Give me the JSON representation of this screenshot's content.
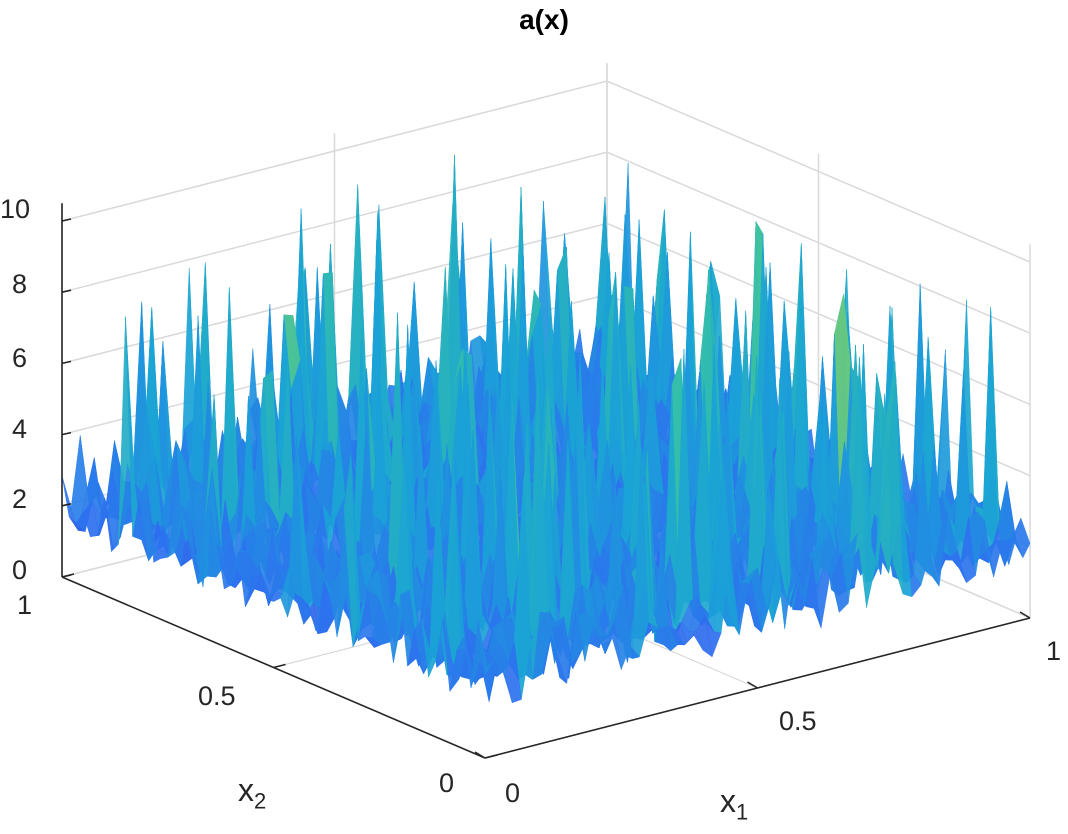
{
  "chart_data": {
    "type": "surface",
    "title": "a(x)",
    "xlabel": "x",
    "xlabel_sub": "1",
    "ylabel": "x",
    "ylabel_sub": "2",
    "zlabel": "",
    "xlim": [
      0,
      1
    ],
    "ylim": [
      0,
      1
    ],
    "zlim": [
      0,
      10.5
    ],
    "x_ticks": [
      "0",
      "0.5",
      "1"
    ],
    "y_ticks": [
      "0",
      "0.5",
      "1"
    ],
    "z_ticks": [
      "0",
      "2",
      "4",
      "6",
      "8",
      "10"
    ],
    "z_range_observed": [
      0.3,
      10.1
    ],
    "grid": true,
    "colormap": "parula",
    "colormap_stops": [
      "#3e26a8",
      "#2e6ff0",
      "#1aa3d6",
      "#35c0a7",
      "#95cf5a",
      "#e7c83a"
    ]
  }
}
